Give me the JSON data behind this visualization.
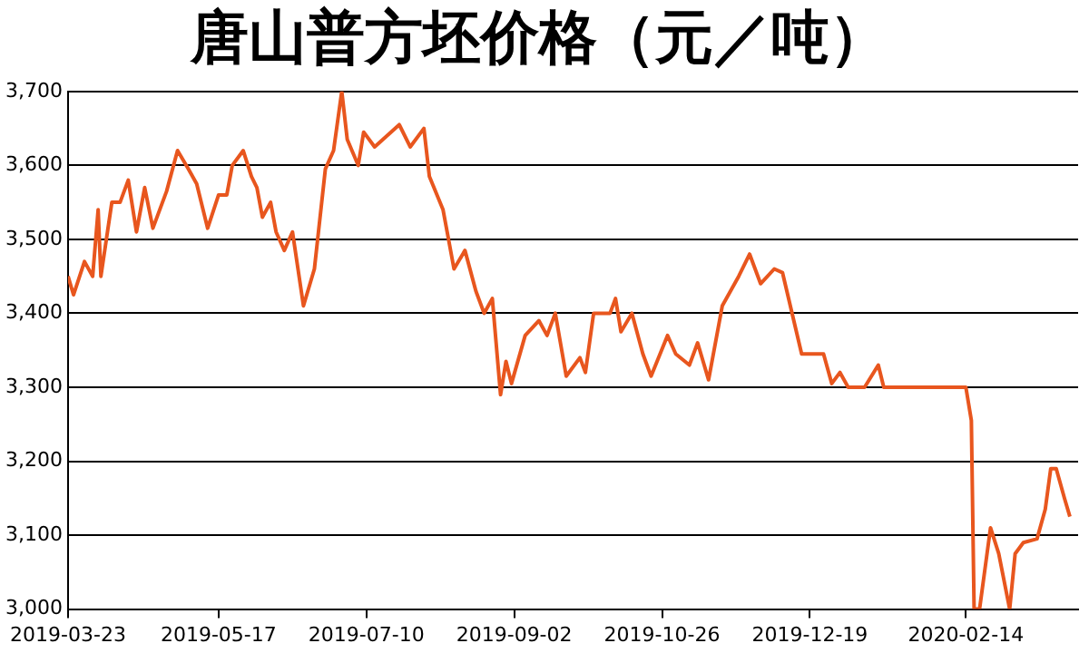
{
  "chart_data": {
    "type": "line",
    "title": "唐山普方坯价格（元／吨）",
    "x": [
      "2019-03-23",
      "2019-03-25",
      "2019-03-29",
      "2019-04-01",
      "2019-04-03",
      "2019-04-04",
      "2019-04-08",
      "2019-04-11",
      "2019-04-14",
      "2019-04-17",
      "2019-04-20",
      "2019-04-23",
      "2019-04-28",
      "2019-05-02",
      "2019-05-06",
      "2019-05-09",
      "2019-05-13",
      "2019-05-17",
      "2019-05-20",
      "2019-05-22",
      "2019-05-26",
      "2019-05-29",
      "2019-05-31",
      "2019-06-02",
      "2019-06-05",
      "2019-06-07",
      "2019-06-10",
      "2019-06-13",
      "2019-06-17",
      "2019-06-21",
      "2019-06-25",
      "2019-06-28",
      "2019-07-01",
      "2019-07-03",
      "2019-07-07",
      "2019-07-09",
      "2019-07-13",
      "2019-07-22",
      "2019-07-26",
      "2019-07-31",
      "2019-08-02",
      "2019-08-07",
      "2019-08-11",
      "2019-08-15",
      "2019-08-19",
      "2019-08-22",
      "2019-08-25",
      "2019-08-28",
      "2019-08-30",
      "2019-09-01",
      "2019-09-06",
      "2019-09-11",
      "2019-09-14",
      "2019-09-17",
      "2019-09-21",
      "2019-09-26",
      "2019-09-28",
      "2019-10-01",
      "2019-10-07",
      "2019-10-09",
      "2019-10-11",
      "2019-10-15",
      "2019-10-19",
      "2019-10-22",
      "2019-10-28",
      "2019-10-31",
      "2019-11-05",
      "2019-11-08",
      "2019-11-12",
      "2019-11-17",
      "2019-11-23",
      "2019-11-27",
      "2019-12-01",
      "2019-12-06",
      "2019-12-09",
      "2019-12-16",
      "2019-12-24",
      "2019-12-27",
      "2019-12-30",
      "2020-01-02",
      "2020-01-08",
      "2020-01-13",
      "2020-01-15",
      "2020-02-14",
      "2020-02-16",
      "2020-02-17",
      "2020-02-19",
      "2020-02-23",
      "2020-02-26",
      "2020-03-01",
      "2020-03-03",
      "2020-03-06",
      "2020-03-11",
      "2020-03-14",
      "2020-03-16",
      "2020-03-18",
      "2020-03-21",
      "2020-03-23"
    ],
    "series": [
      {
        "color": "#e8561e",
        "values": [
          3450,
          3425,
          3470,
          3450,
          3540,
          3450,
          3550,
          3550,
          3580,
          3510,
          3570,
          3515,
          3565,
          3620,
          3595,
          3575,
          3515,
          3560,
          3560,
          3600,
          3620,
          3585,
          3570,
          3530,
          3550,
          3510,
          3485,
          3510,
          3410,
          3460,
          3595,
          3620,
          3700,
          3635,
          3600,
          3645,
          3625,
          3655,
          3625,
          3650,
          3585,
          3540,
          3460,
          3485,
          3430,
          3400,
          3420,
          3290,
          3335,
          3305,
          3370,
          3390,
          3370,
          3400,
          3315,
          3340,
          3320,
          3400,
          3400,
          3420,
          3375,
          3400,
          3345,
          3315,
          3370,
          3345,
          3330,
          3360,
          3310,
          3410,
          3450,
          3480,
          3440,
          3460,
          3455,
          3345,
          3345,
          3305,
          3320,
          3300,
          3300,
          3330,
          3300,
          3300,
          3255,
          3000,
          3000,
          3110,
          3075,
          3000,
          3075,
          3090,
          3095,
          3135,
          3190,
          3190,
          3150,
          3125
        ]
      }
    ],
    "xlim": [
      "2019-03-23",
      "2020-03-26"
    ],
    "xticks": [
      "2019-03-23",
      "2019-05-17",
      "2019-07-10",
      "2019-09-02",
      "2019-10-26",
      "2019-12-19",
      "2020-02-14"
    ],
    "ylim": [
      3000,
      3700
    ],
    "yticks": [
      {
        "value": 3000,
        "label": "3,000"
      },
      {
        "value": 3100,
        "label": "3,100"
      },
      {
        "value": 3200,
        "label": "3,200"
      },
      {
        "value": 3300,
        "label": "3,300"
      },
      {
        "value": 3400,
        "label": "3,400"
      },
      {
        "value": 3500,
        "label": "3,500"
      },
      {
        "value": 3600,
        "label": "3,600"
      },
      {
        "value": 3700,
        "label": "3,700"
      }
    ],
    "grid": "y",
    "legend": false,
    "marker": "none",
    "line_style": "solid"
  }
}
